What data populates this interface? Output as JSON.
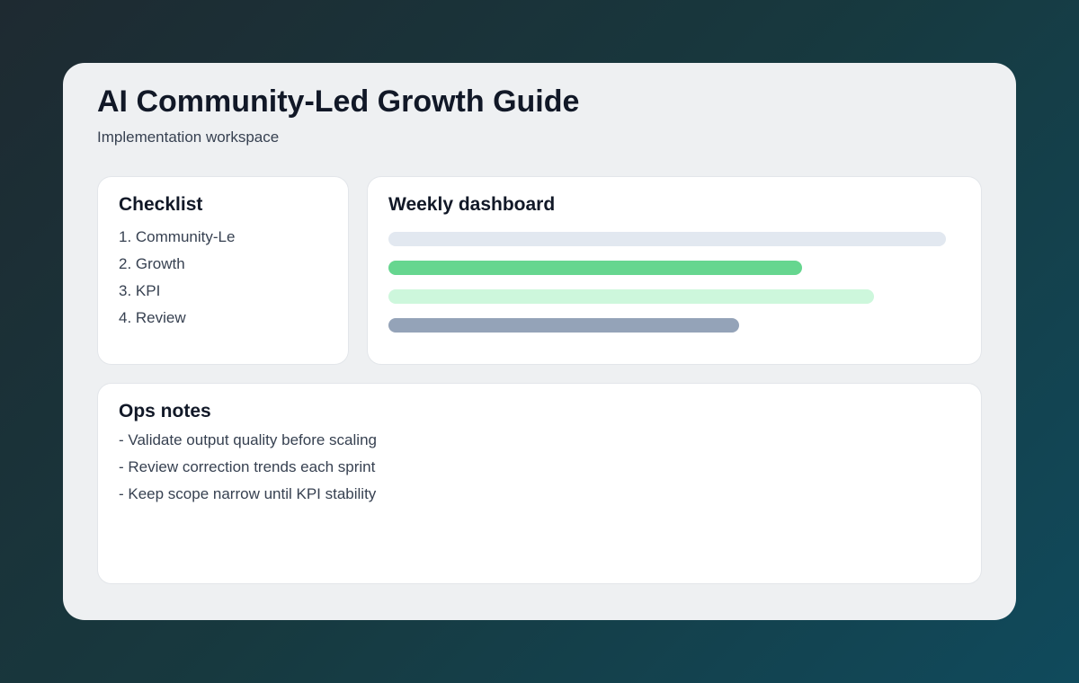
{
  "header": {
    "title": "AI Community-Led Growth Guide",
    "subtitle": "Implementation workspace"
  },
  "checklist": {
    "title": "Checklist",
    "items": [
      "1. Community-Le",
      "2. Growth",
      "3. KPI",
      "4. Review"
    ]
  },
  "dashboard": {
    "title": "Weekly dashboard",
    "bars": [
      {
        "value": 1.0,
        "color": "#e2e8f0"
      },
      {
        "value": 0.742,
        "color": "#66d68f"
      },
      {
        "value": 0.871,
        "color": "#cdf7dc"
      },
      {
        "value": 0.629,
        "color": "#94a3b8"
      }
    ]
  },
  "ops": {
    "title": "Ops notes",
    "items": [
      "- Validate output quality before scaling",
      "- Review correction trends each sprint",
      "- Keep scope narrow until KPI stability"
    ]
  }
}
